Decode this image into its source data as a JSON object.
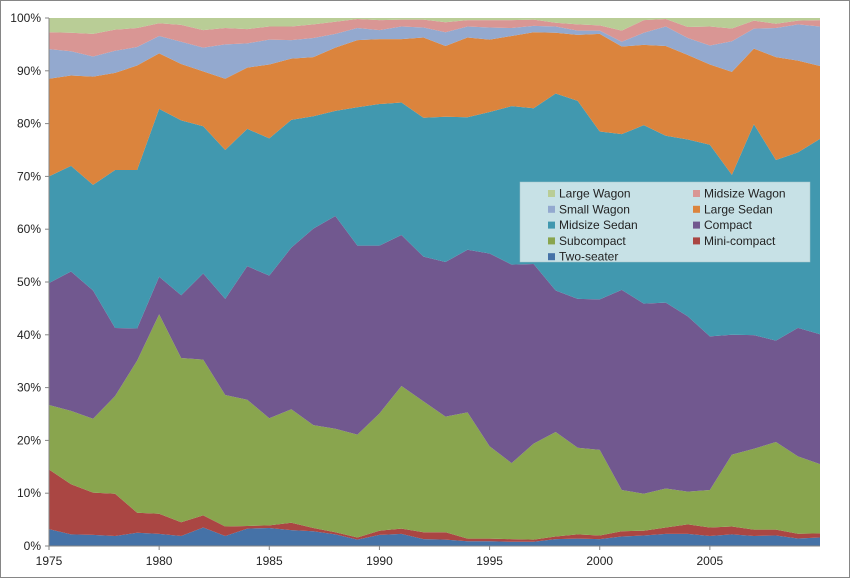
{
  "chart_data": {
    "type": "area",
    "stacked": "percent",
    "x": [
      1975,
      1976,
      1977,
      1978,
      1979,
      1980,
      1981,
      1982,
      1983,
      1984,
      1985,
      1986,
      1987,
      1988,
      1989,
      1990,
      1991,
      1992,
      1993,
      1994,
      1995,
      1996,
      1997,
      1998,
      1999,
      2000,
      2001,
      2002,
      2003,
      2004,
      2005,
      2006,
      2007,
      2008,
      2009,
      2010
    ],
    "x_ticks": [
      1975,
      1980,
      1985,
      1990,
      1995,
      2000,
      2005
    ],
    "y_ticks": [
      "0%",
      "10%",
      "20%",
      "30%",
      "40%",
      "50%",
      "60%",
      "70%",
      "80%",
      "90%",
      "100%"
    ],
    "ylim": [
      0,
      100
    ],
    "grid": false,
    "legend_position": "right-center",
    "series": [
      {
        "name": "Two-seater",
        "color": "#4572A7",
        "values": [
          3.2,
          2.2,
          2.1,
          1.9,
          2.5,
          2.3,
          1.9,
          3.5,
          1.9,
          3.3,
          3.4,
          3.0,
          2.8,
          2.2,
          1.2,
          2.1,
          2.3,
          1.3,
          1.2,
          0.9,
          0.9,
          0.8,
          0.8,
          1.3,
          1.4,
          1.3,
          1.8,
          2.0,
          2.3,
          2.3,
          1.9,
          2.2,
          1.9,
          2.0,
          1.4,
          1.6
        ]
      },
      {
        "name": "Mini-compact",
        "color": "#AA4643",
        "values": [
          11.3,
          9.5,
          8.0,
          8.0,
          3.8,
          3.8,
          2.6,
          2.3,
          1.8,
          0.5,
          0.5,
          1.4,
          0.6,
          0.4,
          0.4,
          0.8,
          1.0,
          1.3,
          1.4,
          0.5,
          0.5,
          0.5,
          0.4,
          0.5,
          0.8,
          0.7,
          1.0,
          0.9,
          1.2,
          1.8,
          1.6,
          1.5,
          1.2,
          1.1,
          0.9,
          0.8
        ]
      },
      {
        "name": "Subcompact",
        "color": "#89A54E",
        "values": [
          12.2,
          13.9,
          14.0,
          18.5,
          28.8,
          37.8,
          31.1,
          29.5,
          24.9,
          23.9,
          20.3,
          21.5,
          19.5,
          19.6,
          19.5,
          22.2,
          27.0,
          24.8,
          21.9,
          23.9,
          17.5,
          14.4,
          18.2,
          19.8,
          16.4,
          16.2,
          7.8,
          7.0,
          7.4,
          6.2,
          7.1,
          13.6,
          15.3,
          16.6,
          14.5,
          13.1
        ]
      },
      {
        "name": "Compact",
        "color": "#71588F",
        "values": [
          23.1,
          26.4,
          24.3,
          12.9,
          6.1,
          7.1,
          11.9,
          16.3,
          18.2,
          25.3,
          27.0,
          30.6,
          37.2,
          40.3,
          35.8,
          31.8,
          28.6,
          27.4,
          29.3,
          30.8,
          36.5,
          37.6,
          34.0,
          26.8,
          28.2,
          28.5,
          37.9,
          36.0,
          35.2,
          33.2,
          29.1,
          22.7,
          21.5,
          19.2,
          24.1,
          24.6
        ]
      },
      {
        "name": "Midsize Sedan",
        "color": "#4198AF",
        "values": [
          20.2,
          20.0,
          20.0,
          29.9,
          30.0,
          31.8,
          33.1,
          27.9,
          28.2,
          26.0,
          26.0,
          24.2,
          21.3,
          19.9,
          26.2,
          26.8,
          25.1,
          26.3,
          27.5,
          25.1,
          26.8,
          30.0,
          29.5,
          37.3,
          37.5,
          31.8,
          29.5,
          33.8,
          31.6,
          33.5,
          36.3,
          30.3,
          39.9,
          34.2,
          32.9,
          37.0
        ]
      },
      {
        "name": "Large Sedan",
        "color": "#DB843D",
        "values": [
          18.5,
          17.1,
          20.5,
          18.4,
          19.8,
          10.5,
          10.7,
          10.4,
          13.5,
          11.6,
          14.0,
          11.6,
          11.2,
          12.0,
          12.7,
          12.3,
          12.0,
          15.2,
          13.4,
          15.1,
          13.7,
          13.3,
          14.4,
          11.5,
          12.5,
          18.5,
          16.6,
          15.2,
          17.0,
          16.0,
          15.2,
          19.5,
          14.3,
          19.5,
          17.2,
          13.8
        ]
      },
      {
        "name": "Small Wagon",
        "color": "#93A9CF",
        "values": [
          5.6,
          4.6,
          3.8,
          4.2,
          3.5,
          3.3,
          4.2,
          4.5,
          6.5,
          4.6,
          4.7,
          3.5,
          3.6,
          2.6,
          2.3,
          1.7,
          2.4,
          1.9,
          2.6,
          2.1,
          2.3,
          1.5,
          1.2,
          1.2,
          0.8,
          0.6,
          0.9,
          2.3,
          3.7,
          3.2,
          3.6,
          5.8,
          3.8,
          5.5,
          6.8,
          7.5
        ]
      },
      {
        "name": "Midsize Wagon",
        "color": "#D99694",
        "values": [
          3.2,
          3.5,
          4.3,
          4.0,
          3.6,
          2.4,
          3.2,
          3.3,
          3.1,
          2.7,
          2.5,
          2.6,
          2.6,
          2.3,
          1.7,
          1.9,
          1.3,
          1.5,
          1.9,
          1.2,
          1.4,
          1.5,
          1.2,
          0.7,
          1.2,
          1.0,
          2.1,
          2.4,
          1.4,
          2.1,
          3.6,
          2.4,
          1.5,
          0.8,
          0.7,
          1.2
        ]
      },
      {
        "name": "Large Wagon",
        "color": "#B9CD96",
        "values": [
          2.7,
          2.8,
          3.0,
          2.2,
          1.9,
          1.0,
          1.3,
          2.3,
          1.9,
          2.1,
          1.6,
          1.6,
          1.2,
          0.7,
          0.2,
          0.4,
          0.3,
          0.3,
          0.8,
          0.4,
          0.4,
          0.4,
          0.3,
          0.9,
          1.2,
          1.4,
          2.4,
          0.4,
          0.2,
          1.7,
          1.6,
          2.0,
          0.5,
          1.1,
          0.5,
          0.4
        ]
      }
    ]
  }
}
